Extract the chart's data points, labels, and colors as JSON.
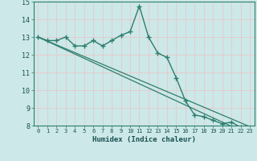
{
  "x": [
    0,
    1,
    2,
    3,
    4,
    5,
    6,
    7,
    8,
    9,
    10,
    11,
    12,
    13,
    14,
    15,
    16,
    17,
    18,
    19,
    20,
    21,
    22,
    23
  ],
  "y_main": [
    13.0,
    12.8,
    12.8,
    13.0,
    12.5,
    12.5,
    12.8,
    12.5,
    12.8,
    13.1,
    13.3,
    14.75,
    13.0,
    12.1,
    11.85,
    10.7,
    9.4,
    8.6,
    8.5,
    8.3,
    8.1,
    8.2,
    7.9,
    7.75
  ],
  "regression1": [
    13.0,
    12.78,
    12.56,
    12.34,
    12.12,
    11.9,
    11.68,
    11.46,
    11.24,
    11.02,
    10.8,
    10.58,
    10.36,
    10.14,
    9.92,
    9.7,
    9.48,
    9.26,
    9.04,
    8.82,
    8.6,
    8.38,
    8.16,
    7.94
  ],
  "regression2": [
    13.0,
    12.76,
    12.52,
    12.28,
    12.04,
    11.8,
    11.56,
    11.32,
    11.08,
    10.84,
    10.6,
    10.36,
    10.12,
    9.88,
    9.64,
    9.4,
    9.16,
    8.92,
    8.68,
    8.44,
    8.2,
    7.96,
    7.72,
    7.48
  ],
  "line_color": "#2e7d6e",
  "bg_color": "#cce8e8",
  "grid_major_color": "#e8c8c8",
  "grid_minor_color": "#e8c8c8",
  "xlabel": "Humidex (Indice chaleur)",
  "ylim": [
    8,
    15
  ],
  "xlim": [
    -0.5,
    23.5
  ],
  "yticks": [
    8,
    9,
    10,
    11,
    12,
    13,
    14,
    15
  ],
  "xticks": [
    0,
    1,
    2,
    3,
    4,
    5,
    6,
    7,
    8,
    9,
    10,
    11,
    12,
    13,
    14,
    15,
    16,
    17,
    18,
    19,
    20,
    21,
    22,
    23
  ]
}
